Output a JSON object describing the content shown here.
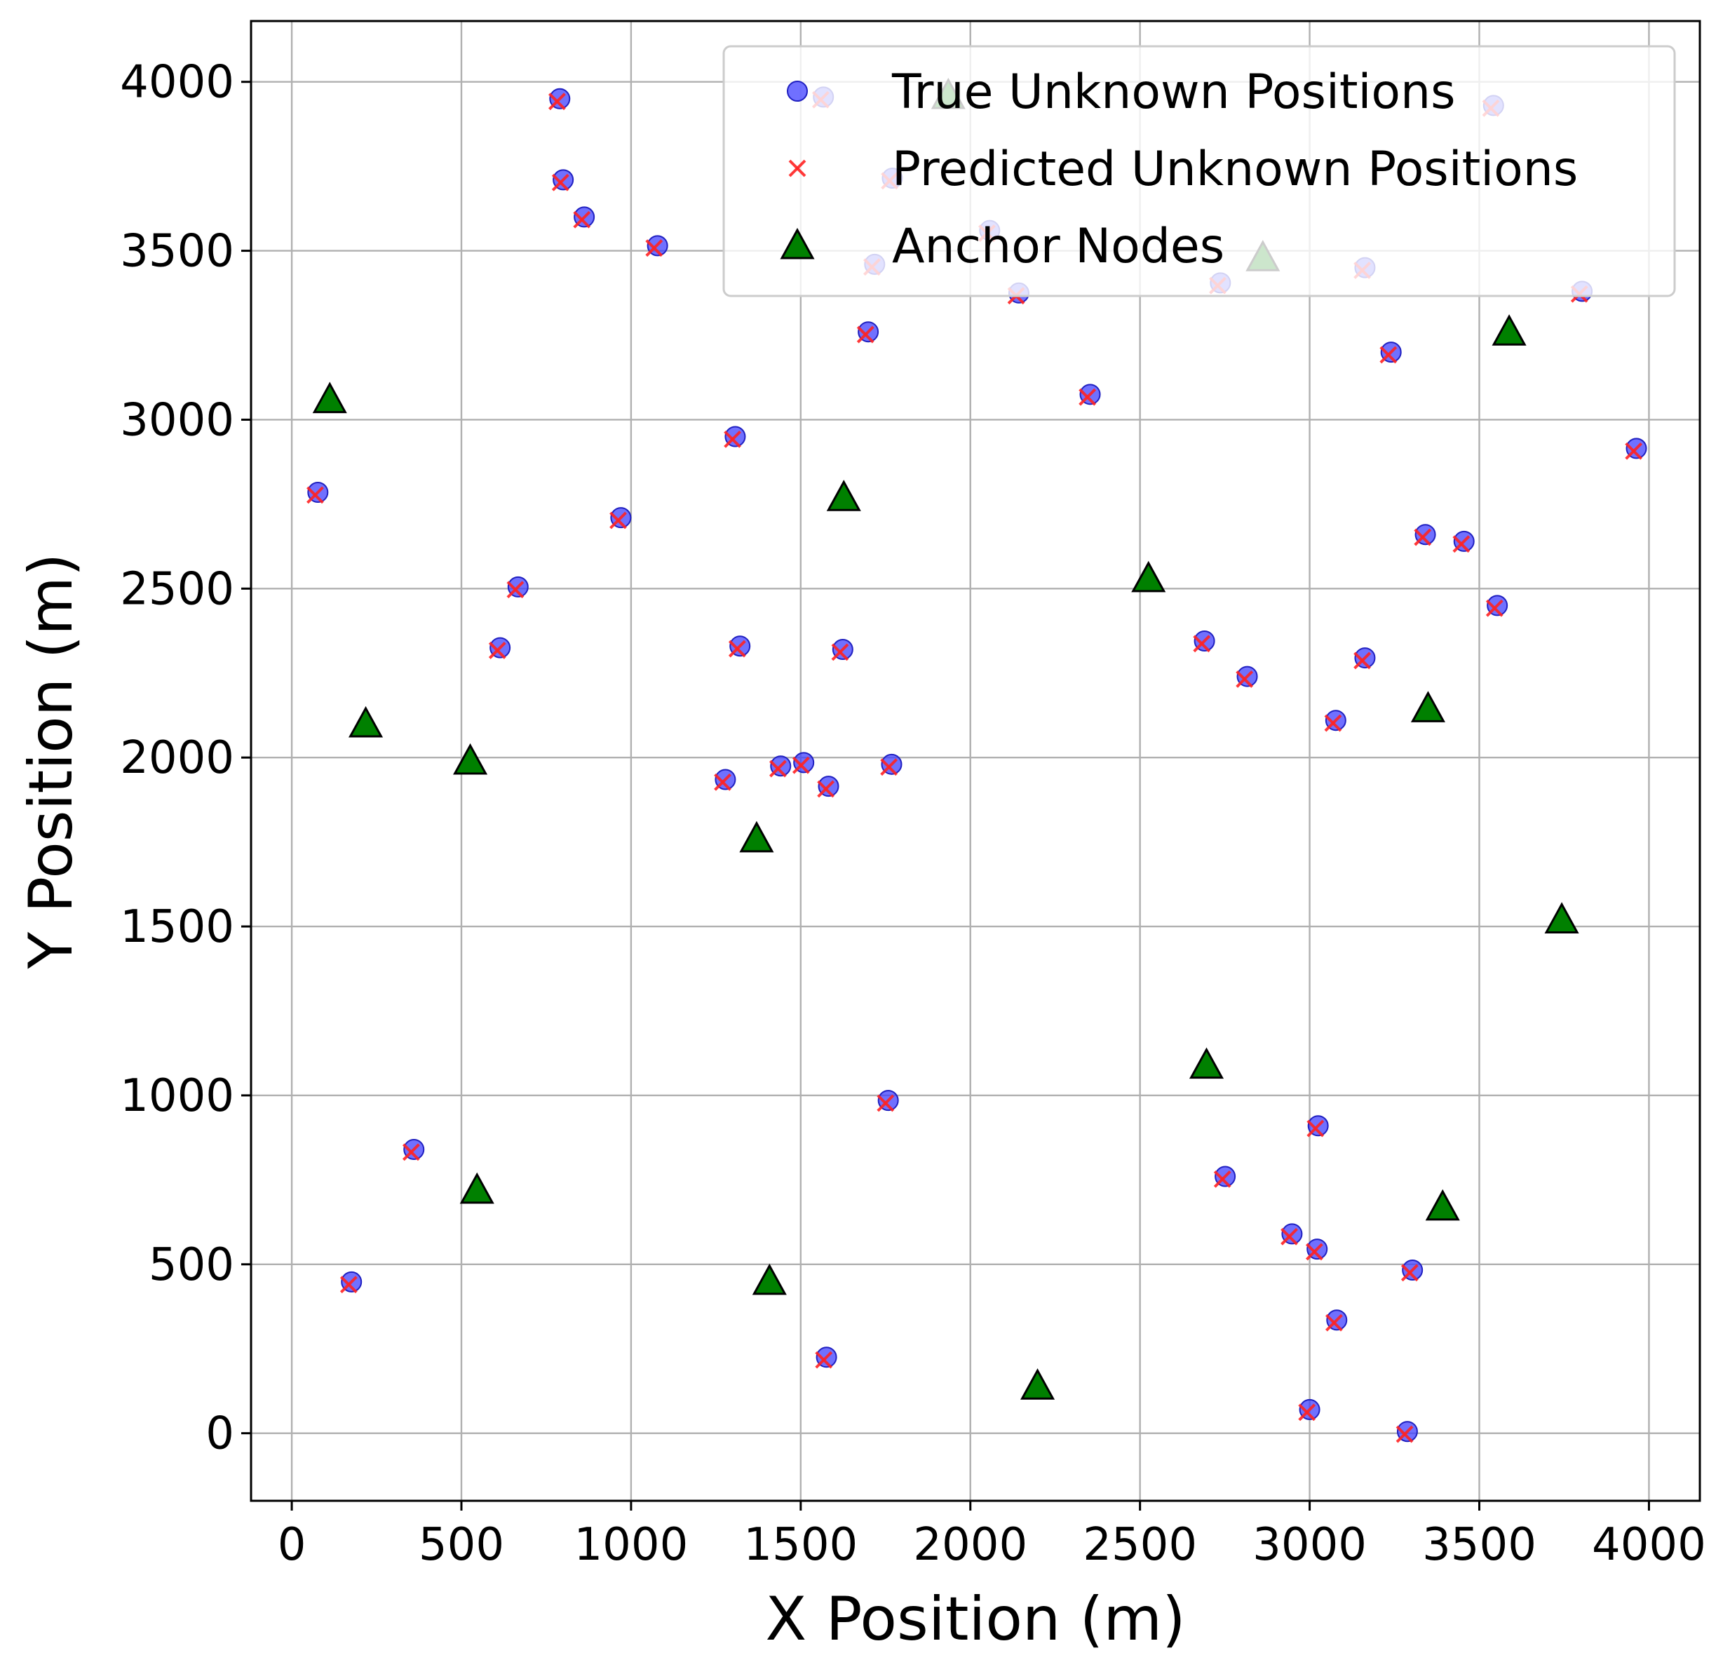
{
  "chart_data": {
    "type": "scatter",
    "xlabel": "X Position (m)",
    "ylabel": "Y Position (m)",
    "xlim": [
      -120,
      4150
    ],
    "ylim": [
      -200,
      4180
    ],
    "xticks": [
      0,
      500,
      1000,
      1500,
      2000,
      2500,
      3000,
      3500,
      4000
    ],
    "yticks": [
      0,
      500,
      1000,
      1500,
      2000,
      2500,
      3000,
      3500,
      4000
    ],
    "xtick_labels": [
      "0",
      "500",
      "1000",
      "1500",
      "2000",
      "2500",
      "3000",
      "3500",
      "4000"
    ],
    "ytick_labels": [
      "0",
      "500",
      "1000",
      "1500",
      "2000",
      "2500",
      "3000",
      "3500",
      "4000"
    ],
    "grid": true,
    "legend_position": "top-right",
    "series": [
      {
        "name": "True Unknown Positions",
        "marker": "circle",
        "color": "#4040ff",
        "points": [
          [
            790,
            3950
          ],
          [
            800,
            3710
          ],
          [
            862,
            3600
          ],
          [
            1078,
            3515
          ],
          [
            1567,
            3955
          ],
          [
            1770,
            3715
          ],
          [
            2057,
            3560
          ],
          [
            1718,
            3460
          ],
          [
            2143,
            3375
          ],
          [
            2737,
            3405
          ],
          [
            3163,
            3450
          ],
          [
            3542,
            3930
          ],
          [
            3803,
            3380
          ],
          [
            1699,
            3260
          ],
          [
            3240,
            3200
          ],
          [
            2353,
            3075
          ],
          [
            1307,
            2950
          ],
          [
            3963,
            2915
          ],
          [
            77,
            2785
          ],
          [
            970,
            2710
          ],
          [
            3341,
            2660
          ],
          [
            3455,
            2640
          ],
          [
            667,
            2505
          ],
          [
            3553,
            2450
          ],
          [
            614,
            2325
          ],
          [
            1321,
            2330
          ],
          [
            1624,
            2320
          ],
          [
            2690,
            2345
          ],
          [
            2816,
            2240
          ],
          [
            3163,
            2295
          ],
          [
            3077,
            2110
          ],
          [
            1278,
            1935
          ],
          [
            1441,
            1975
          ],
          [
            1509,
            1985
          ],
          [
            1582,
            1915
          ],
          [
            1768,
            1980
          ],
          [
            1758,
            985
          ],
          [
            3025,
            910
          ],
          [
            360,
            840
          ],
          [
            2751,
            760
          ],
          [
            2948,
            590
          ],
          [
            3022,
            545
          ],
          [
            176,
            448
          ],
          [
            3303,
            483
          ],
          [
            3080,
            335
          ],
          [
            1576,
            225
          ],
          [
            3000,
            70
          ],
          [
            3288,
            5
          ]
        ]
      },
      {
        "name": "Predicted Unknown Positions",
        "marker": "x",
        "color": "#ff2222",
        "points": [
          [
            782,
            3942
          ],
          [
            792,
            3702
          ],
          [
            855,
            3592
          ],
          [
            1068,
            3508
          ],
          [
            1559,
            3947
          ],
          [
            1762,
            3707
          ],
          [
            2049,
            3552
          ],
          [
            1710,
            3452
          ],
          [
            2135,
            3367
          ],
          [
            2729,
            3397
          ],
          [
            3155,
            3442
          ],
          [
            3534,
            3922
          ],
          [
            3795,
            3372
          ],
          [
            1691,
            3252
          ],
          [
            3232,
            3192
          ],
          [
            2345,
            3067
          ],
          [
            1299,
            2942
          ],
          [
            3955,
            2907
          ],
          [
            69,
            2777
          ],
          [
            962,
            2702
          ],
          [
            3333,
            2652
          ],
          [
            3447,
            2632
          ],
          [
            659,
            2497
          ],
          [
            3545,
            2442
          ],
          [
            606,
            2317
          ],
          [
            1313,
            2322
          ],
          [
            1616,
            2312
          ],
          [
            2682,
            2337
          ],
          [
            2808,
            2232
          ],
          [
            3155,
            2287
          ],
          [
            3069,
            2102
          ],
          [
            1270,
            1927
          ],
          [
            1433,
            1967
          ],
          [
            1501,
            1977
          ],
          [
            1574,
            1907
          ],
          [
            1760,
            1972
          ],
          [
            1750,
            977
          ],
          [
            3017,
            902
          ],
          [
            352,
            832
          ],
          [
            2743,
            752
          ],
          [
            2940,
            582
          ],
          [
            3014,
            537
          ],
          [
            168,
            440
          ],
          [
            3295,
            475
          ],
          [
            3072,
            327
          ],
          [
            1568,
            217
          ],
          [
            2992,
            62
          ],
          [
            3280,
            -3
          ]
        ]
      },
      {
        "name": "Anchor Nodes",
        "marker": "triangle",
        "color": "#008000",
        "points": [
          [
            112,
            3060
          ],
          [
            1627,
            2770
          ],
          [
            2525,
            2530
          ],
          [
            3588,
            3260
          ],
          [
            2862,
            3480
          ],
          [
            1935,
            3960
          ],
          [
            218,
            2100
          ],
          [
            526,
            1990
          ],
          [
            1370,
            1760
          ],
          [
            3349,
            2145
          ],
          [
            3743,
            1520
          ],
          [
            2696,
            1090
          ],
          [
            546,
            720
          ],
          [
            3392,
            670
          ],
          [
            1408,
            450
          ],
          [
            2198,
            140
          ]
        ]
      }
    ]
  }
}
